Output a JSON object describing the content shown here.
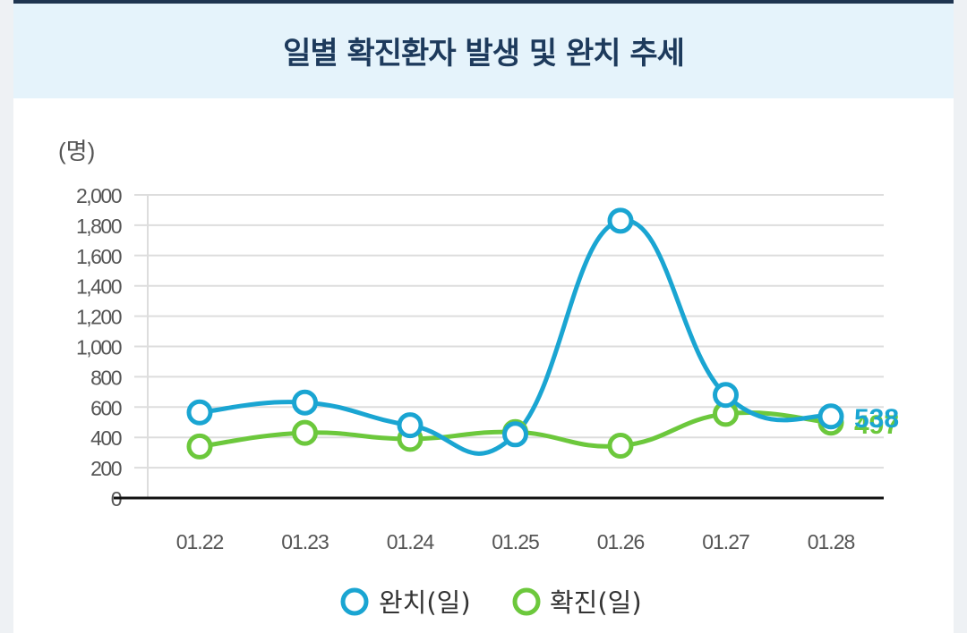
{
  "header": {
    "title": "일별 확진환자 발생 및 완치 추세"
  },
  "chart_data": {
    "type": "line",
    "title": "일별 확진환자 발생 및 완치 추세",
    "ylabel": "(명)",
    "xlabel": "",
    "ylim": [
      0,
      2000
    ],
    "yticks": [
      0,
      200,
      400,
      600,
      800,
      1000,
      1200,
      1400,
      1600,
      1800,
      2000
    ],
    "ytick_labels": [
      "0",
      "200",
      "400",
      "600",
      "800",
      "1,000",
      "1,200",
      "1,400",
      "1,600",
      "1,800",
      "2,000"
    ],
    "categories": [
      "01.22",
      "01.23",
      "01.24",
      "01.25",
      "01.26",
      "01.27",
      "01.28"
    ],
    "grid": true,
    "legend_position": "bottom",
    "series": [
      {
        "name": "완치(일)",
        "color": "#1aa5d2",
        "values": [
          565,
          630,
          480,
          420,
          1830,
          680,
          538
        ],
        "end_label": "538"
      },
      {
        "name": "확진(일)",
        "color": "#6cc83c",
        "values": [
          340,
          430,
          390,
          435,
          345,
          555,
          497
        ],
        "end_label": "497"
      }
    ]
  }
}
